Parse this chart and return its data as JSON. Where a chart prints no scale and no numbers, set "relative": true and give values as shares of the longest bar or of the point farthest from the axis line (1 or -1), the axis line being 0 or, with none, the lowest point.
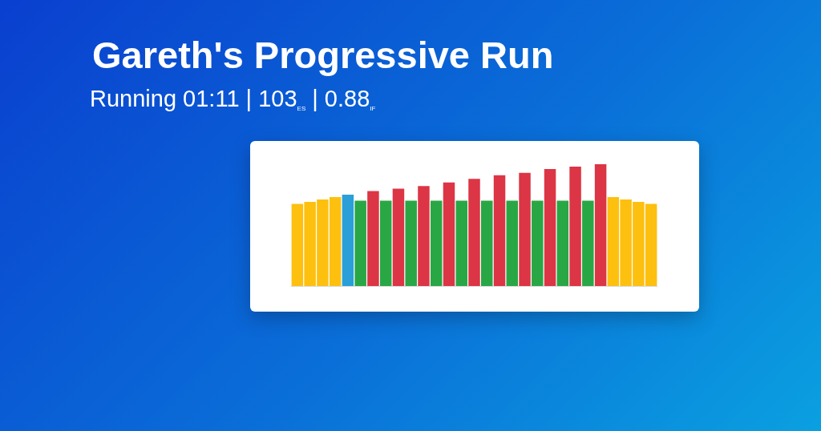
{
  "chart_data": {
    "type": "bar",
    "relative": true,
    "title": "Gareth's Progressive Run",
    "subtitle": "Running 01:11 | 103$_{ES}$ | 0.88$_{IF}$",
    "categories": [
      null,
      null,
      null,
      null,
      null,
      null,
      null,
      null,
      null,
      null,
      null,
      null,
      null,
      null,
      null,
      null,
      null,
      null,
      null,
      null,
      null,
      null,
      null,
      null,
      null,
      null,
      null,
      null,
      null
    ],
    "colors": [
      "#fdc00f",
      "#fdc00f",
      "#fdc00f",
      "#fdc00f",
      "#2a9fd8",
      "#29a745",
      "#dc3545",
      "#29a745",
      "#dc3545",
      "#29a745",
      "#dc3545",
      "#29a745",
      "#dc3545",
      "#29a745",
      "#dc3545",
      "#29a745",
      "#dc3545",
      "#29a745",
      "#dc3545",
      "#29a745",
      "#dc3545",
      "#29a745",
      "#dc3545",
      "#29a745",
      "#dc3545",
      "#fdc00f",
      "#fdc00f",
      "#fdc00f",
      "#fdc00f"
    ],
    "values": [
      0.675,
      0.69,
      0.71,
      0.73,
      0.75,
      0.7,
      0.78,
      0.7,
      0.8,
      0.7,
      0.82,
      0.7,
      0.85,
      0.7,
      0.88,
      0.7,
      0.91,
      0.7,
      0.93,
      0.7,
      0.96,
      0.7,
      0.98,
      0.7,
      1,
      0.73,
      0.71,
      0.69,
      0.675
    ]
  }
}
